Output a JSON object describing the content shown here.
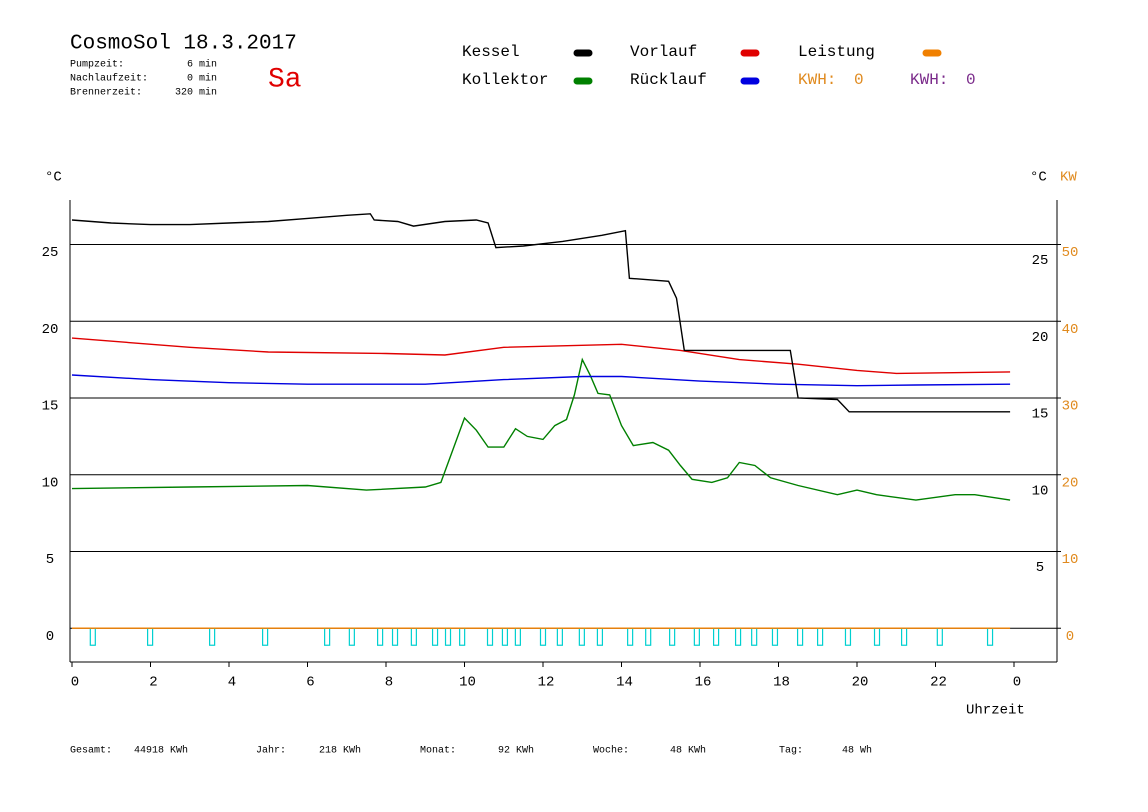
{
  "header": {
    "title": "CosmoSol 18.3.2017",
    "day": "Sa",
    "stats": [
      {
        "label": "Pumpzeit:",
        "value": "6 min"
      },
      {
        "label": "Nachlaufzeit:",
        "value": "0 min"
      },
      {
        "label": "Brennerzeit:",
        "value": "320 min"
      }
    ],
    "kwh": [
      {
        "label": "KWH:",
        "value": 0,
        "color": "#e08a1e"
      },
      {
        "label": "KWH:",
        "value": 0,
        "color": "#7a2a8a"
      }
    ]
  },
  "chart_data": {
    "type": "line",
    "y_label": "°C",
    "y2_label": "°C",
    "y2_unit": "KW",
    "x_label": "Uhrzeit",
    "xlim": [
      0,
      24
    ],
    "xticks": [
      0,
      2,
      4,
      6,
      8,
      10,
      12,
      14,
      16,
      18,
      20,
      22,
      {
        "value": 24,
        "label": "0"
      }
    ],
    "ylim": [
      -2.2,
      27.9
    ],
    "yticks": [
      0,
      5,
      10,
      15,
      20,
      25
    ],
    "y2lim": [
      -4.4,
      55.8
    ],
    "y2ticks": [
      0,
      10,
      20,
      30,
      40,
      50
    ],
    "grid": true,
    "series": [
      {
        "name": "Kessel",
        "color": "#000000",
        "x": [
          0,
          1,
          2,
          3,
          4,
          5,
          6,
          7,
          7.6,
          7.7,
          8.3,
          8.7,
          9.5,
          10.3,
          10.6,
          10.8,
          11.5,
          12.5,
          13.5,
          14.1,
          14.2,
          15.2,
          15.4,
          15.6,
          18.3,
          18.5,
          19.5,
          19.8,
          23.9
        ],
        "values": [
          26.6,
          26.4,
          26.3,
          26.3,
          26.4,
          26.5,
          26.7,
          26.9,
          27.0,
          26.6,
          26.5,
          26.2,
          26.5,
          26.6,
          26.4,
          24.8,
          24.9,
          25.2,
          25.6,
          25.9,
          22.8,
          22.6,
          21.5,
          18.1,
          18.1,
          15.0,
          14.9,
          14.1,
          14.1
        ]
      },
      {
        "name": "Kollektor",
        "color": "#008000",
        "x": [
          0,
          3,
          6,
          7.5,
          9,
          9.4,
          9.7,
          10,
          10.3,
          10.6,
          11,
          11.3,
          11.6,
          12,
          12.3,
          12.6,
          12.8,
          13,
          13.2,
          13.4,
          13.7,
          14,
          14.3,
          14.8,
          15.2,
          15.5,
          15.8,
          16.3,
          16.7,
          17,
          17.4,
          17.8,
          18.5,
          19.5,
          20,
          20.5,
          21.5,
          22.5,
          23,
          23.9
        ],
        "values": [
          9.1,
          9.2,
          9.3,
          9.0,
          9.2,
          9.5,
          11.6,
          13.7,
          12.9,
          11.8,
          11.8,
          13.0,
          12.5,
          12.3,
          13.2,
          13.6,
          15.2,
          17.5,
          16.5,
          15.3,
          15.2,
          13.2,
          11.9,
          12.1,
          11.6,
          10.6,
          9.7,
          9.5,
          9.8,
          10.8,
          10.6,
          9.8,
          9.3,
          8.7,
          9.0,
          8.7,
          8.35,
          8.7,
          8.7,
          8.35
        ]
      },
      {
        "name": "Vorlauf",
        "color": "#e00000",
        "x": [
          0,
          3,
          5,
          8,
          9.5,
          11,
          14,
          15.5,
          17,
          18.5,
          20,
          21,
          23.9
        ],
        "values": [
          18.9,
          18.3,
          18.0,
          17.9,
          17.8,
          18.3,
          18.5,
          18.1,
          17.5,
          17.2,
          16.8,
          16.6,
          16.7
        ]
      },
      {
        "name": "Rücklauf",
        "color": "#0000e0",
        "x": [
          0,
          2,
          4,
          6,
          9,
          11,
          13,
          14,
          16,
          18,
          20,
          21.5,
          23.9
        ],
        "values": [
          16.5,
          16.2,
          16.0,
          15.9,
          15.9,
          16.2,
          16.4,
          16.4,
          16.1,
          15.9,
          15.8,
          15.85,
          15.9
        ]
      },
      {
        "name": "Leistung",
        "color": "#f08000",
        "axis": "y2",
        "x": [
          0,
          23.9
        ],
        "values": [
          0,
          0
        ]
      }
    ],
    "pump_on": [
      0.53,
      1.99,
      3.57,
      4.92,
      6.5,
      7.13,
      7.85,
      8.23,
      8.71,
      9.25,
      9.58,
      9.94,
      10.65,
      11.03,
      11.36,
      12.0,
      12.43,
      12.99,
      13.45,
      14.22,
      14.68,
      15.29,
      15.92,
      16.41,
      16.97,
      17.38,
      17.91,
      18.55,
      19.06,
      19.77,
      20.51,
      21.2,
      22.11,
      23.39
    ],
    "pump_color": "#00d0d0"
  },
  "footer": [
    {
      "label": "Gesamt:",
      "value": "44918 KWh"
    },
    {
      "label": "Jahr:",
      "value": "218 KWh"
    },
    {
      "label": "Monat:",
      "value": "92 KWh"
    },
    {
      "label": "Woche:",
      "value": "48 KWh"
    },
    {
      "label": "Tag:",
      "value": "48 Wh"
    }
  ]
}
